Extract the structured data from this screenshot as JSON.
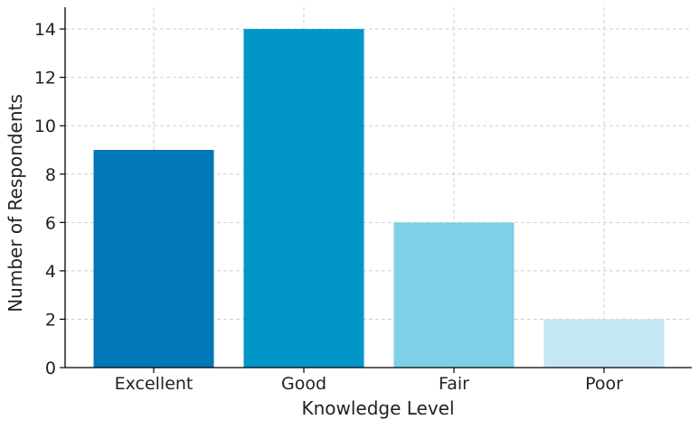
{
  "chart_data": {
    "type": "bar",
    "categories": [
      "Excellent",
      "Good",
      "Fair",
      "Poor"
    ],
    "values": [
      9,
      14,
      6,
      2
    ],
    "colors": [
      "#0077b6",
      "#0096c7",
      "#7ecfe8",
      "#c4e6f5"
    ],
    "xlabel": "Knowledge Level",
    "ylabel": "Number of Respondents",
    "ylim": [
      0,
      14.9
    ],
    "yticks": [
      0,
      2,
      4,
      6,
      8,
      10,
      12,
      14
    ],
    "grid": true
  }
}
